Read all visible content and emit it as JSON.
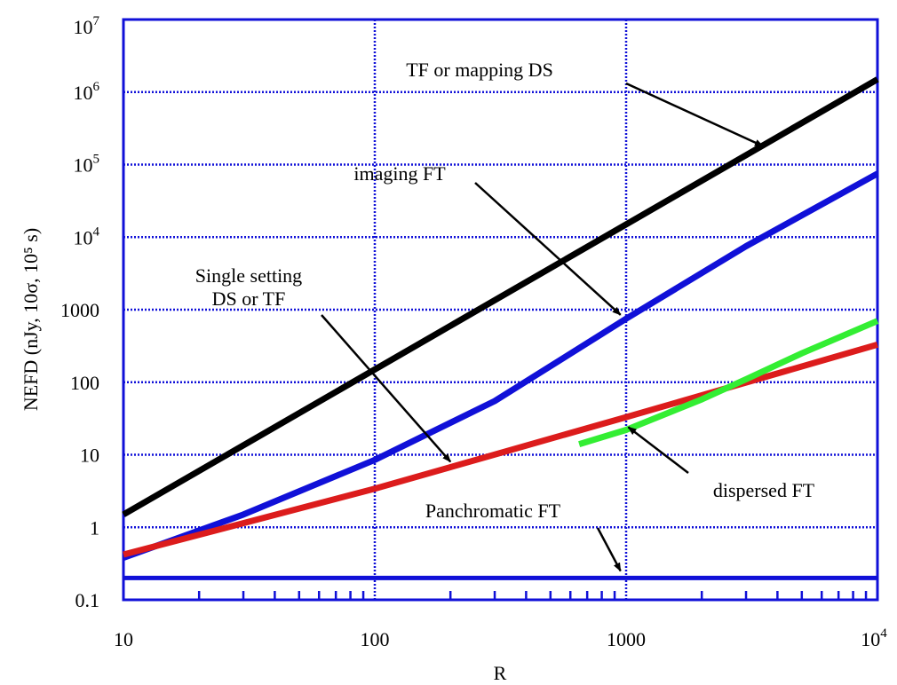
{
  "chart_data": {
    "type": "line",
    "xlabel": "R",
    "ylabel": "NEFD (nJy, 10σ, 10⁵ s)",
    "xscale": "log",
    "yscale": "log",
    "xlim": [
      10,
      10000
    ],
    "ylim": [
      0.1,
      10000000
    ],
    "grid": true,
    "x_ticks": [
      {
        "value": 10,
        "base": "10",
        "exp": ""
      },
      {
        "value": 100,
        "base": "100",
        "exp": ""
      },
      {
        "value": 1000,
        "base": "1000",
        "exp": ""
      },
      {
        "value": 10000,
        "base": "10",
        "exp": "4"
      }
    ],
    "y_ticks": [
      {
        "value": 0.1,
        "base": "0.1",
        "exp": ""
      },
      {
        "value": 1,
        "base": "1",
        "exp": ""
      },
      {
        "value": 10,
        "base": "10",
        "exp": ""
      },
      {
        "value": 100,
        "base": "100",
        "exp": ""
      },
      {
        "value": 1000,
        "base": "1000",
        "exp": ""
      },
      {
        "value": 10000,
        "base": "10",
        "exp": "4"
      },
      {
        "value": 100000,
        "base": "10",
        "exp": "5"
      },
      {
        "value": 1000000,
        "base": "10",
        "exp": "6"
      },
      {
        "value": 10000000,
        "base": "10",
        "exp": "7"
      }
    ],
    "series": [
      {
        "key": "tf-mapping-ds",
        "color": "#000000",
        "x": [
          10,
          10000
        ],
        "y": [
          1.5,
          1500000
        ]
      },
      {
        "key": "imaging-ft",
        "color": "#1010d8",
        "x": [
          10,
          30,
          100,
          300,
          1000,
          3000,
          10000
        ],
        "y": [
          0.38,
          1.5,
          8.5,
          55,
          750,
          7500,
          75000
        ]
      },
      {
        "key": "single-setting",
        "color": "#dc1c1c",
        "x": [
          10,
          100,
          1000,
          10000
        ],
        "y": [
          0.42,
          3.4,
          33,
          330
        ]
      },
      {
        "key": "dispersed-ft",
        "color": "#33ee33",
        "x": [
          650,
          1000,
          2000,
          3000,
          5000,
          10000
        ],
        "y": [
          14,
          22,
          58,
          110,
          250,
          700
        ]
      },
      {
        "key": "panchromatic-ft",
        "color": "#1010d8",
        "x": [
          10,
          10000
        ],
        "y": [
          0.2,
          0.2
        ]
      }
    ],
    "annotations": [
      {
        "text": "TF or mapping DS",
        "lines": [
          "TF or mapping DS"
        ],
        "target": [
          3500,
          180000
        ]
      },
      {
        "text": "imaging FT",
        "lines": [
          "imaging FT"
        ],
        "target": [
          950,
          850
        ]
      },
      {
        "text": "Single setting DS or TF",
        "lines": [
          "Single setting",
          "DS or TF"
        ],
        "target": [
          200,
          8
        ]
      },
      {
        "text": "dispersed FT",
        "lines": [
          "dispersed FT"
        ],
        "target": [
          1020,
          24
        ]
      },
      {
        "text": "Panchromatic FT",
        "lines": [
          "Panchromatic FT"
        ],
        "target": [
          950,
          0.25
        ]
      }
    ]
  }
}
